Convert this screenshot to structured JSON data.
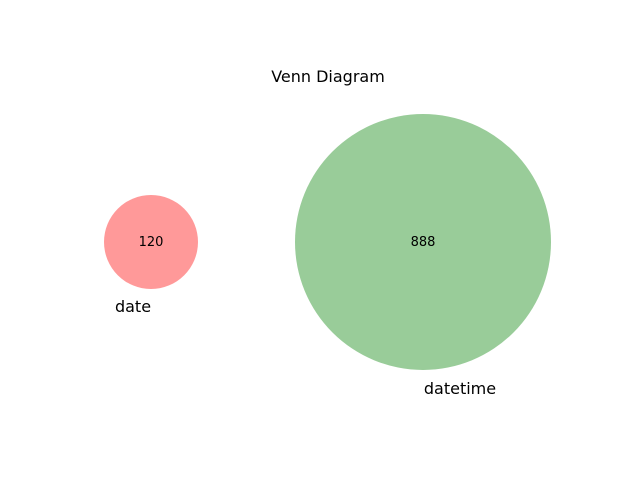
{
  "diagram": {
    "title": "Venn Diagram",
    "sets": [
      {
        "name": "date",
        "count": "120",
        "color": "#ff9999"
      },
      {
        "name": "datetime",
        "count": "888",
        "color": "#99cc99"
      }
    ]
  }
}
